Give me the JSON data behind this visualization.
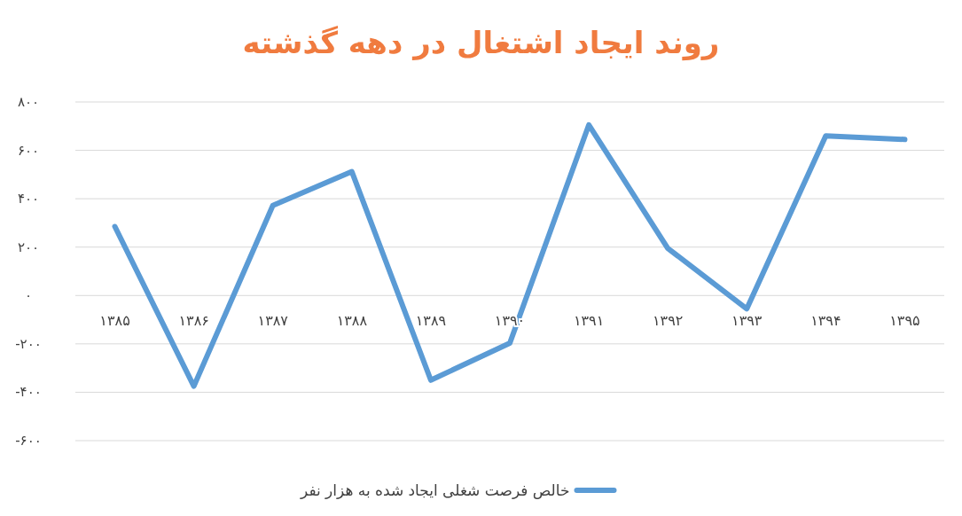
{
  "chart_data": {
    "type": "line",
    "title": "روند ایجاد اشتغال در دهه گذشته",
    "categories": [
      "۱۳۸۵",
      "۱۳۸۶",
      "۱۳۸۷",
      "۱۳۸۸",
      "۱۳۸۹",
      "۱۳۹۰",
      "۱۳۹۱",
      "۱۳۹۲",
      "۱۳۹۳",
      "۱۳۹۴",
      "۱۳۹۵"
    ],
    "series": [
      {
        "name": "خالص فرصت شغلی  ایجاد شده به هزار نفر",
        "color": "#5b9bd5",
        "values": [
          285,
          -375,
          372,
          512,
          -350,
          -197,
          705,
          195,
          -55,
          660,
          645
        ]
      }
    ],
    "ylim": [
      -600,
      800
    ],
    "yticks": [
      {
        "value": 800,
        "label": "۸۰۰"
      },
      {
        "value": 600,
        "label": "۶۰۰"
      },
      {
        "value": 400,
        "label": "۴۰۰"
      },
      {
        "value": 200,
        "label": "۲۰۰"
      },
      {
        "value": 0,
        "label": "۰"
      },
      {
        "value": -200,
        "label": "-۲۰۰"
      },
      {
        "value": -400,
        "label": "-۴۰۰"
      },
      {
        "value": -600,
        "label": "-۶۰۰"
      }
    ],
    "grid": "y",
    "legend": "bottom"
  }
}
